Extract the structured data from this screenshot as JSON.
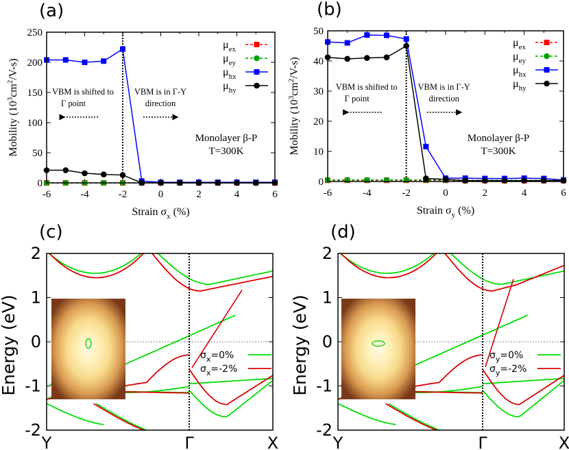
{
  "chart_data": [
    {
      "panel": "(a)",
      "type": "line",
      "xlabel": "Strain σ",
      "xlabel_sub": "x",
      "xlabel_unit": " (%)",
      "ylabel": "Mobility (10",
      "ylabel_sup": "3",
      "ylabel_rest": "cm",
      "ylabel_sup2": "2",
      "ylabel_end": "/V-s)",
      "xlim": [
        -6,
        6
      ],
      "ylim": [
        0,
        250
      ],
      "xticks": [
        "-6",
        "-4",
        "-2",
        "0",
        "2",
        "4",
        "6"
      ],
      "yticks": [
        "0",
        "50",
        "100",
        "150",
        "200",
        "250"
      ],
      "x": [
        -6,
        -5,
        -4,
        -3,
        -2,
        -1,
        0,
        1,
        2,
        3,
        4,
        5,
        6
      ],
      "series": [
        {
          "name": "μ",
          "sub": "ex",
          "color": "#ff0000",
          "marker": "square",
          "dash": true,
          "values": [
            0,
            0,
            0,
            0,
            0,
            0,
            0,
            0,
            0,
            0,
            0,
            0,
            0
          ]
        },
        {
          "name": "μ",
          "sub": "ey",
          "color": "#00a000",
          "marker": "circle",
          "dash": true,
          "values": [
            0,
            0,
            0,
            0,
            0,
            0,
            0,
            0,
            0,
            0,
            0,
            0,
            0
          ]
        },
        {
          "name": "μ",
          "sub": "hx",
          "color": "#0000ff",
          "marker": "square",
          "dash": false,
          "values": [
            204,
            204,
            200,
            202,
            222,
            3,
            1,
            1,
            1,
            1,
            1,
            1,
            1
          ]
        },
        {
          "name": "μ",
          "sub": "hy",
          "color": "#000000",
          "marker": "circle",
          "dash": false,
          "values": [
            21,
            21,
            16,
            14,
            13,
            0,
            0,
            0,
            0,
            0,
            0,
            0,
            0
          ]
        }
      ],
      "vline_x": -2,
      "annotations": [
        "VBM is shifted to",
        "Γ point",
        "VBM is in Γ-Y",
        "direction"
      ],
      "note": [
        "Monolayer β-P",
        "T=300K"
      ]
    },
    {
      "panel": "(b)",
      "type": "line",
      "xlabel": "Strain σ",
      "xlabel_sub": "y",
      "xlabel_unit": " (%)",
      "ylabel": "Mobility (10",
      "ylabel_sup": "3",
      "ylabel_rest": "cm",
      "ylabel_sup2": "2",
      "ylabel_end": "/V-s)",
      "xlim": [
        -6,
        6
      ],
      "ylim": [
        0,
        50
      ],
      "xticks": [
        "-6",
        "-4",
        "-2",
        "0",
        "2",
        "4",
        "6"
      ],
      "yticks": [
        "0",
        "10",
        "20",
        "30",
        "40",
        "50"
      ],
      "x": [
        -6,
        -5,
        -4,
        -3,
        -2,
        -1,
        0,
        1,
        2,
        3,
        4,
        5,
        6
      ],
      "series": [
        {
          "name": "μ",
          "sub": "ex",
          "color": "#ff0000",
          "marker": "square",
          "dash": true,
          "values": [
            0.4,
            0.4,
            0.4,
            0.4,
            0.4,
            0.4,
            0.4,
            0.3,
            0.3,
            0.3,
            0.3,
            0.3,
            0.3
          ]
        },
        {
          "name": "μ",
          "sub": "ey",
          "color": "#00a000",
          "marker": "circle",
          "dash": true,
          "values": [
            0.5,
            0.5,
            0.5,
            0.5,
            0.5,
            0.5,
            0.5,
            0.4,
            0.4,
            0.4,
            0.4,
            0.4,
            0.4
          ]
        },
        {
          "name": "μ",
          "sub": "hx",
          "color": "#0000ff",
          "marker": "square",
          "dash": false,
          "values": [
            46.3,
            46,
            48.6,
            48.5,
            47.3,
            11.6,
            1.1,
            1.1,
            1,
            1,
            1.1,
            1,
            0.5
          ]
        },
        {
          "name": "μ",
          "sub": "hy",
          "color": "#000000",
          "marker": "circle",
          "dash": false,
          "values": [
            41.2,
            40.7,
            41,
            41.2,
            45,
            1,
            0.7,
            0.3,
            0.3,
            0.3,
            0.3,
            0.3,
            0.3
          ]
        }
      ],
      "vline_x": -2,
      "annotations": [
        "VBM is shifted to",
        "Γ point",
        "VBM is in Γ-Y",
        "direction"
      ],
      "note": [
        "Monolayer β-P",
        "T=300K"
      ]
    },
    {
      "panel": "(c)",
      "type": "line",
      "ylabel": "Energy (eV)",
      "ylim": [
        -2,
        2
      ],
      "yticks": [
        "-2",
        "-1",
        "0",
        "1",
        "2"
      ],
      "kpoints": [
        "Y",
        "Γ",
        "X"
      ],
      "legend": [
        {
          "label": "σ",
          "sub": "x",
          "value": "=0%",
          "color": "#00dd00"
        },
        {
          "label": "σ",
          "sub": "x",
          "value": "=-2%",
          "color": "#dd0000"
        }
      ]
    },
    {
      "panel": "(d)",
      "type": "line",
      "ylabel": "Energy (eV)",
      "ylim": [
        -2,
        2
      ],
      "yticks": [
        "-2",
        "-1",
        "0",
        "1",
        "2"
      ],
      "kpoints": [
        "Y",
        "Γ",
        "X"
      ],
      "legend": [
        {
          "label": "σ",
          "sub": "y",
          "value": "=0%",
          "color": "#00dd00"
        },
        {
          "label": "σ",
          "sub": "y",
          "value": "=-2%",
          "color": "#dd0000"
        }
      ]
    }
  ]
}
